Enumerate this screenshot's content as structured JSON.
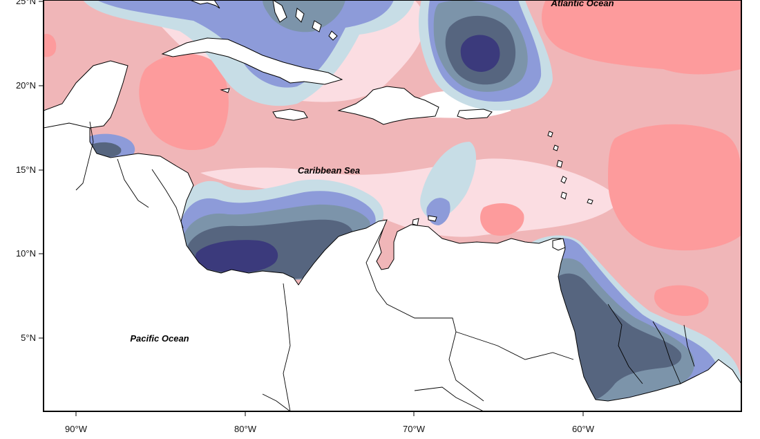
{
  "map": {
    "labels": {
      "atlantic": "Atlantic Ocean",
      "caribbean": "Caribbean Sea",
      "pacific": "Pacific Ocean"
    },
    "lat_ticks": [
      "25°N",
      "20°N",
      "15°N",
      "10°N",
      "5°N"
    ],
    "lon_ticks": [
      "90°W",
      "80°W",
      "70°W",
      "60°W"
    ],
    "colors": {
      "strong_positive": "#fd9b9c",
      "positive": "#f0b6b8",
      "weak_positive": "#fbdde2",
      "neutral": "#ffffff",
      "weak_negative": "#c7dde6",
      "negative": "#8d9bd9",
      "strong_negative": "#7c94aa",
      "very_strong_negative": "#56657f",
      "extreme_negative": "#3b3a7c",
      "land": "#ffffff",
      "coastline": "#000000"
    }
  }
}
